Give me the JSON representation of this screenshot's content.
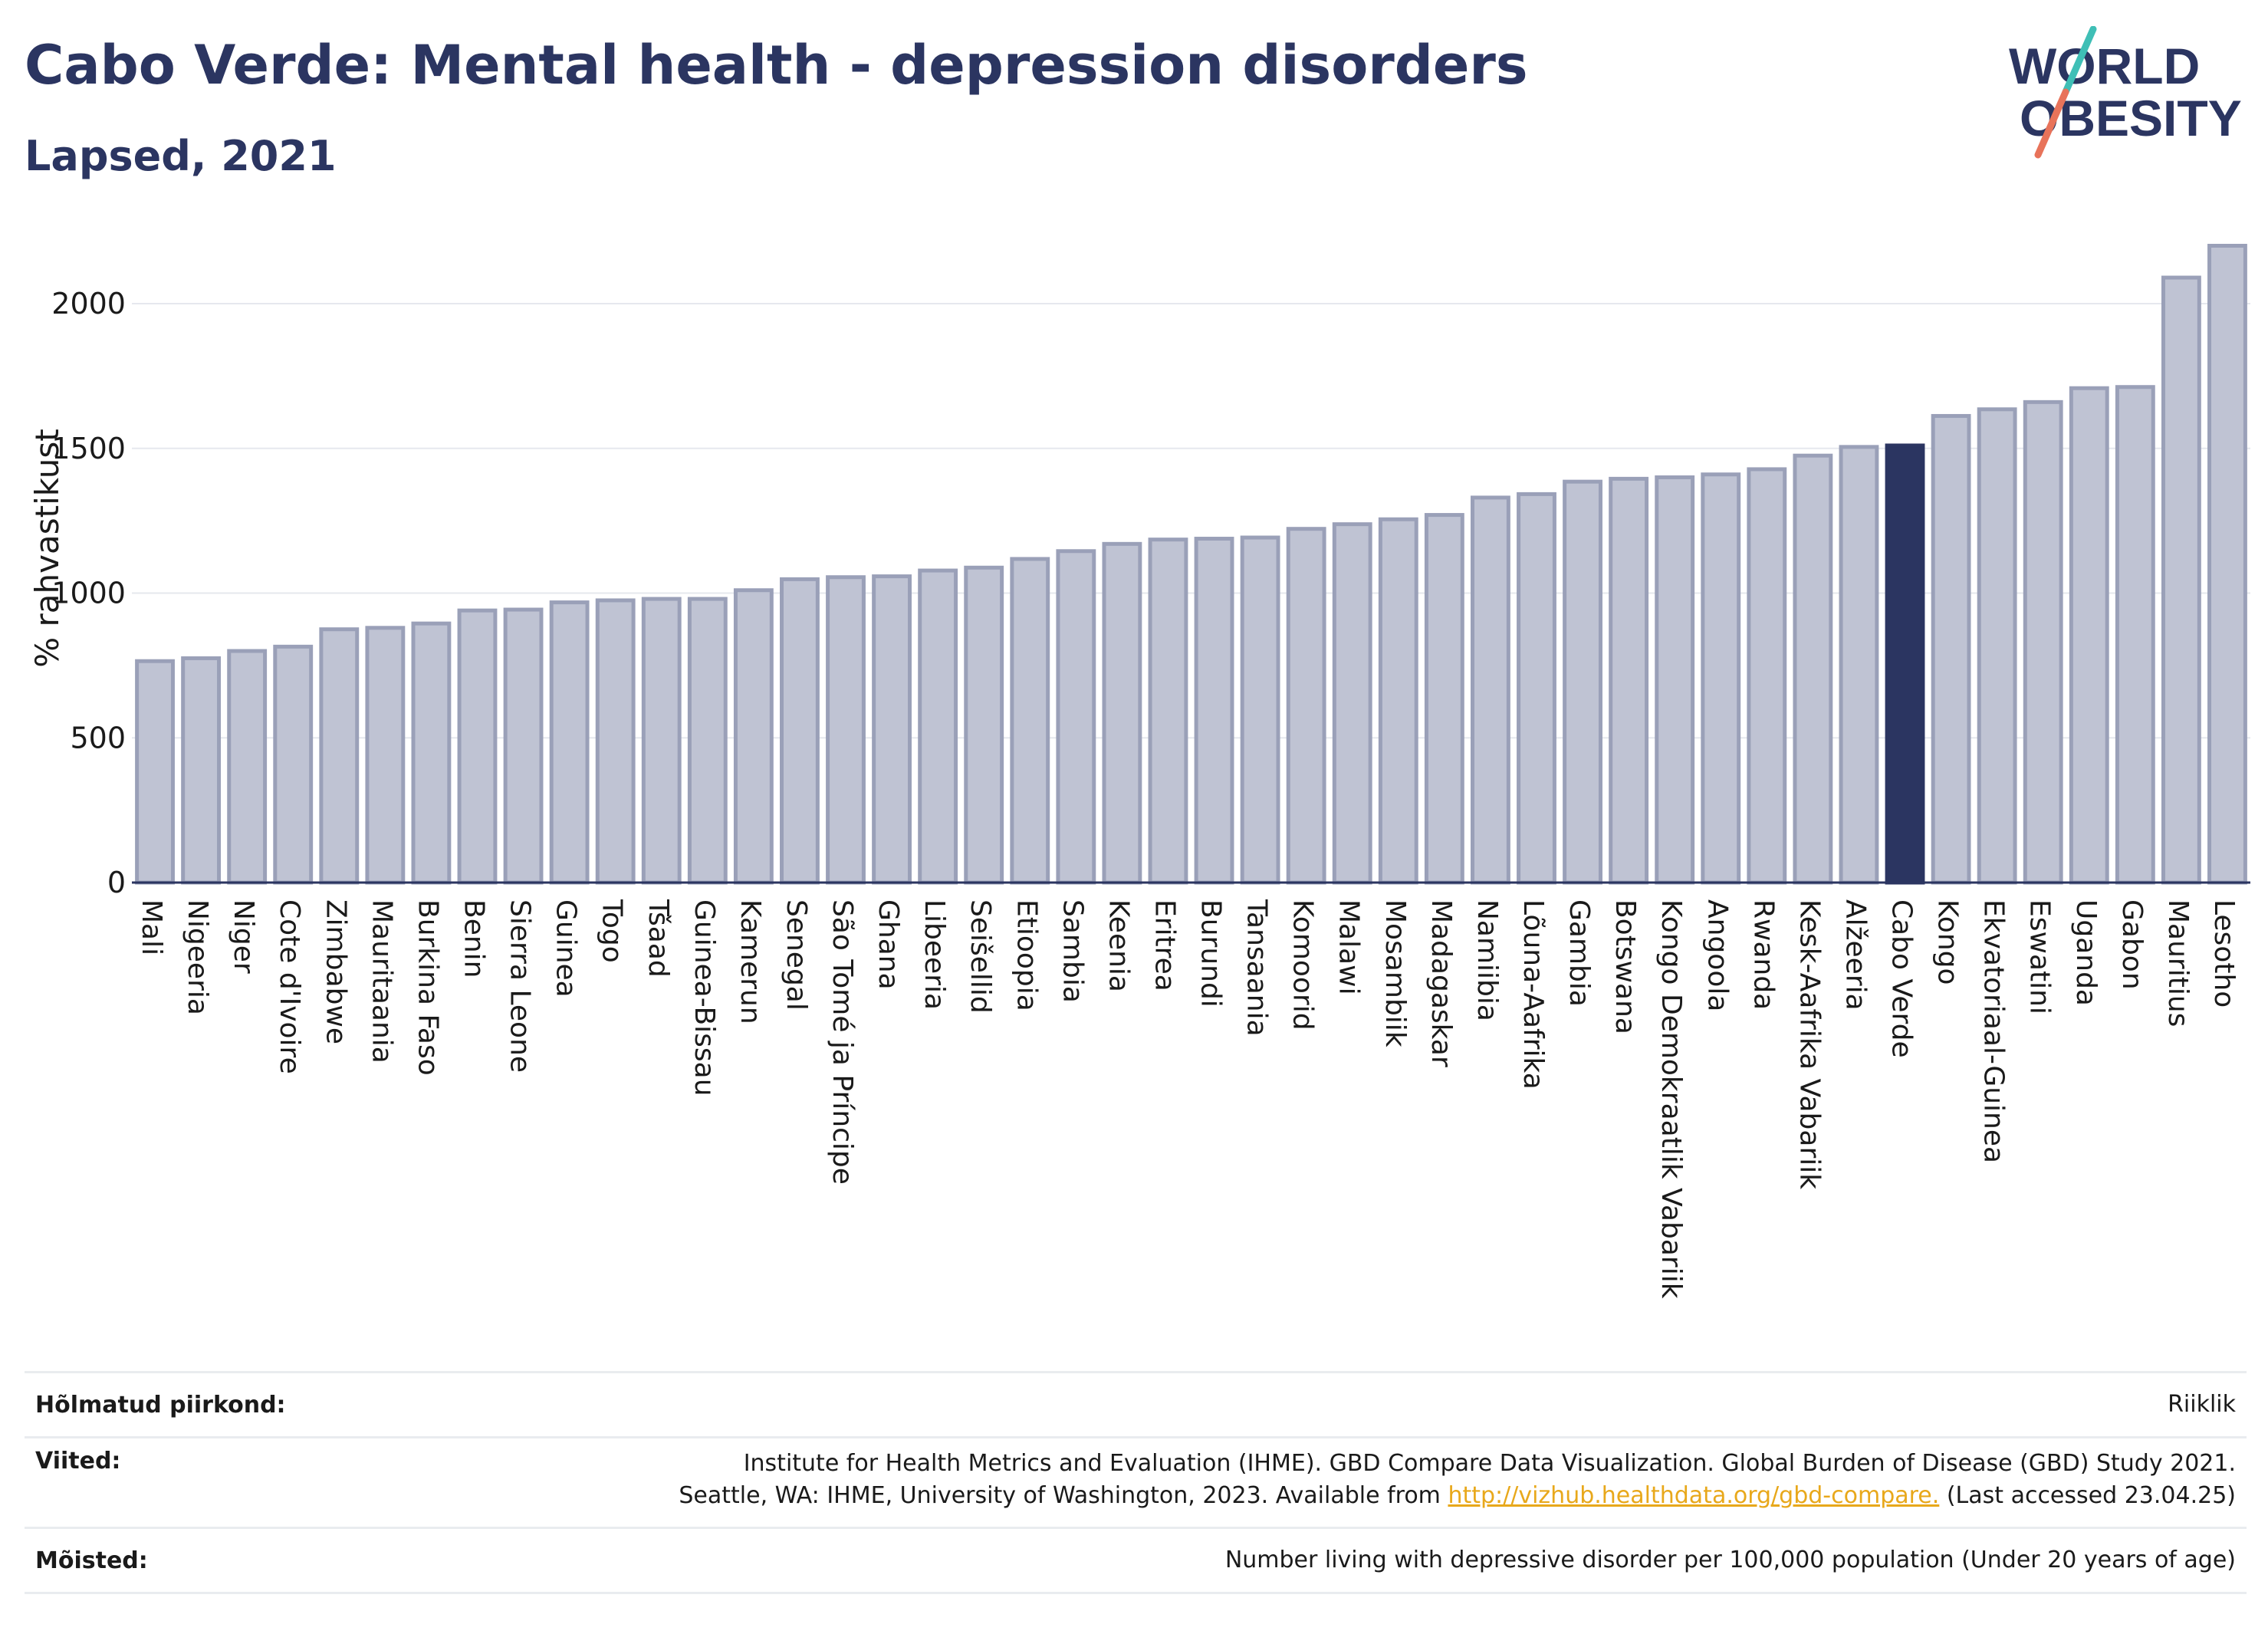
{
  "header": {
    "title": "Cabo Verde: Mental health - depression disorders",
    "subtitle": "Lapsed, 2021"
  },
  "logo": {
    "line1": "WORLD",
    "line2": "OBESITY",
    "accent_colors": [
      "#3fbfb6",
      "#e8735a"
    ],
    "text_color": "#2b3561"
  },
  "chart_data": {
    "type": "bar",
    "ylabel": "% rahvastikust",
    "xlabel": "",
    "ylim": [
      0,
      2250
    ],
    "yticks": [
      0,
      500,
      1000,
      1500,
      2000
    ],
    "grid": true,
    "highlight": "Cabo Verde",
    "colors": {
      "bar": "#bfc3d3",
      "bar_edge": "#9aa0b8",
      "highlight": "#2b3561"
    },
    "categories": [
      "Mali",
      "Nigeeria",
      "Niger",
      "Cote d'Ivoire",
      "Zimbabwe",
      "Mauritaania",
      "Burkina Faso",
      "Benin",
      "Sierra Leone",
      "Guinea",
      "Togo",
      "Tšaad",
      "Guinea-Bissau",
      "Kamerun",
      "Senegal",
      "São Tomé ja Príncipe",
      "Ghana",
      "Libeeria",
      "Seišellid",
      "Etioopia",
      "Sambia",
      "Keenia",
      "Eritrea",
      "Burundi",
      "Tansaania",
      "Komoorid",
      "Malawi",
      "Mosambiik",
      "Madagaskar",
      "Namiibia",
      "Lõuna-Aafrika",
      "Gambia",
      "Botswana",
      "Kongo Demokraatlik Vabariik",
      "Angoola",
      "Rwanda",
      "Kesk-Aafrika Vabariik",
      "Alžeeria",
      "Cabo Verde",
      "Kongo",
      "Ekvatoriaal-Guinea",
      "Eswatini",
      "Uganda",
      "Gabon",
      "Mauritius",
      "Lesotho"
    ],
    "values": [
      765,
      775,
      800,
      815,
      875,
      880,
      895,
      940,
      943,
      968,
      975,
      980,
      980,
      1010,
      1048,
      1055,
      1058,
      1078,
      1088,
      1118,
      1145,
      1170,
      1185,
      1188,
      1192,
      1222,
      1238,
      1255,
      1270,
      1330,
      1342,
      1385,
      1395,
      1400,
      1410,
      1428,
      1475,
      1505,
      1510,
      1612,
      1635,
      1660,
      1708,
      1712,
      2090,
      2200
    ]
  },
  "footer": {
    "region_label": "Hõlmatud piirkond:",
    "region_value": "Riiklik",
    "refs_label": "Viited:",
    "refs_line1": "Institute for Health Metrics and Evaluation (IHME). GBD Compare Data Visualization. Global Burden of Disease (GBD) Study 2021.",
    "refs_line2_pre": "Seattle, WA: IHME, University of Washington, 2023. Available from ",
    "refs_link": "http://vizhub.healthdata.org/gbd-compare.",
    "refs_line2_post": " (Last accessed 23.04.25)",
    "defs_label": "Mõisted:",
    "defs_value": "Number living with depressive disorder per 100,000 population (Under 20 years of age)"
  }
}
